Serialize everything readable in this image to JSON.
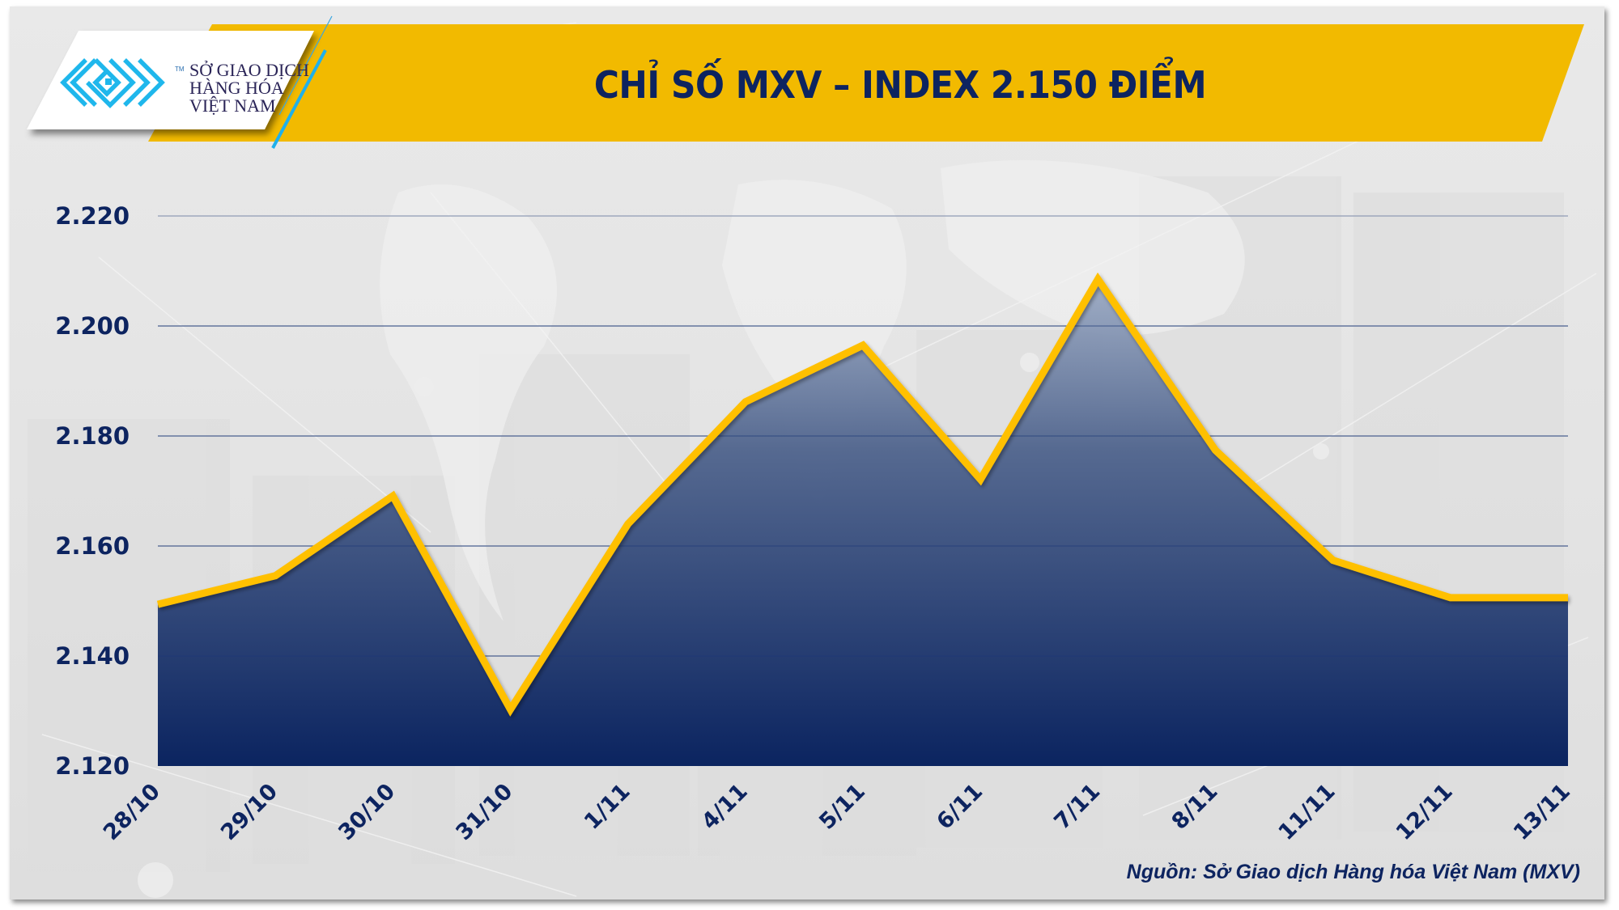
{
  "header": {
    "title": "CHỈ SỐ MXV – INDEX 2.150 ĐIỂM",
    "logo": {
      "lines": [
        "SỞ GIAO DỊCH",
        "HÀNG HÓA",
        "VIỆT NAM"
      ],
      "trademark": "TM",
      "icon": "mxv-logo-icon"
    }
  },
  "footer": {
    "source": "Nguồn: Sở Giao dịch Hàng hóa Việt Nam (MXV)"
  },
  "colors": {
    "banner": "#F2BA00",
    "line": "#FFC000",
    "area_top": "#9AA9C3",
    "area_bottom": "#0B2460",
    "text": "#0D2460",
    "logo": "#1FB7EC",
    "grid": "#8F9BB5"
  },
  "chart_data": {
    "type": "area",
    "title": "CHỈ SỐ MXV – INDEX 2.150 ĐIỂM",
    "xlabel": "",
    "ylabel": "",
    "categories": [
      "28/10",
      "29/10",
      "30/10",
      "31/10",
      "1/11",
      "4/11",
      "5/11",
      "6/11",
      "7/11",
      "8/11",
      "11/11",
      "12/11",
      "13/11"
    ],
    "series": [
      {
        "name": "MXV-Index",
        "values": [
          2149.4,
          2154.6,
          2169.1,
          2130.3,
          2164.0,
          2186.2,
          2196.5,
          2172.1,
          2208.5,
          2177.4,
          2157.4,
          2150.6,
          2150.6
        ]
      }
    ],
    "yticks": [
      "2.120",
      "2.140",
      "2.160",
      "2.180",
      "2.200",
      "2.220"
    ],
    "ytick_values": [
      2120,
      2140,
      2160,
      2180,
      2200,
      2220
    ],
    "ylim": [
      2120,
      2220
    ],
    "grid": true,
    "legend": "none",
    "source": "Nguồn: Sở Giao dịch Hàng hóa Việt Nam (MXV)"
  }
}
